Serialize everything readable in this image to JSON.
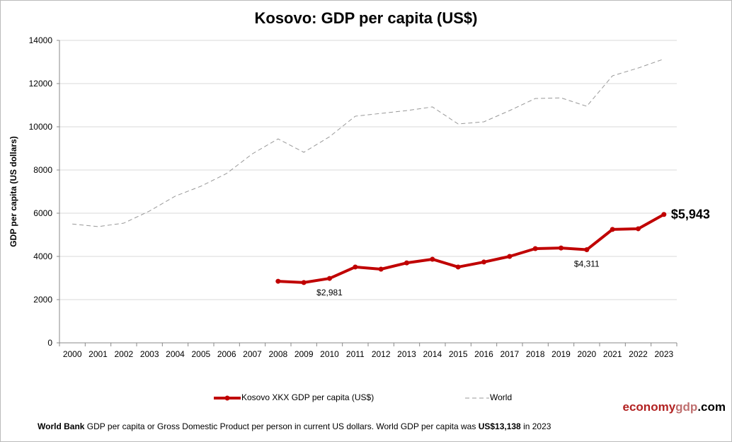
{
  "chart_data": {
    "type": "line",
    "title": "Kosovo: GDP per capita (US$)",
    "ylabel": "GDP per capita (US dollars)",
    "xlabel": "",
    "ylim": [
      0,
      14000
    ],
    "yticks": [
      0,
      2000,
      4000,
      6000,
      8000,
      10000,
      12000,
      14000
    ],
    "grid": true,
    "legend_position": "bottom",
    "categories": [
      "2000",
      "2001",
      "2002",
      "2003",
      "2004",
      "2005",
      "2006",
      "2007",
      "2008",
      "2009",
      "2010",
      "2011",
      "2012",
      "2013",
      "2014",
      "2015",
      "2016",
      "2017",
      "2018",
      "2019",
      "2020",
      "2021",
      "2022",
      "2023"
    ],
    "series": [
      {
        "name": "Kosovo XKX GDP per capita (US$)",
        "color": "#c00000",
        "style": "solid-markers",
        "values": [
          null,
          null,
          null,
          null,
          null,
          null,
          null,
          null,
          2850,
          2790,
          2981,
          3510,
          3410,
          3700,
          3870,
          3510,
          3740,
          4000,
          4360,
          4390,
          4311,
          5250,
          5280,
          5943
        ]
      },
      {
        "name": "World",
        "color": "#999999",
        "style": "dashed",
        "values": [
          5500,
          5380,
          5540,
          6100,
          6790,
          7250,
          7840,
          8750,
          9440,
          8820,
          9540,
          10490,
          10620,
          10750,
          10920,
          10130,
          10230,
          10750,
          11310,
          11340,
          10950,
          12360,
          12720,
          13138
        ]
      }
    ],
    "annotations": [
      {
        "year": "2010",
        "label": "$2,981"
      },
      {
        "year": "2020",
        "label": "$4,311"
      },
      {
        "year": "2023",
        "label": "$5,943"
      }
    ]
  },
  "brand": {
    "part1": "economy",
    "part2": "gdp",
    "part3": ".com"
  },
  "footer": {
    "source": "World Bank",
    "text": " GDP per capita or Gross Domestic Product per person  in current US dollars.   World GDP per capita was ",
    "value": "US$13,138",
    "suffix": "  in 2023"
  }
}
